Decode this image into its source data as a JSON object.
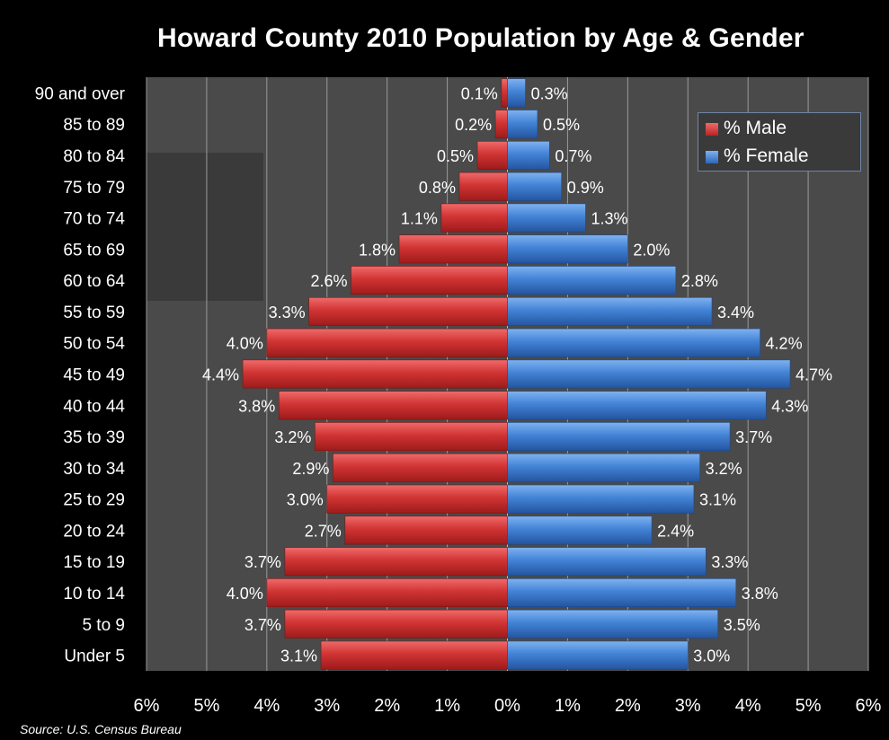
{
  "chart_data": {
    "type": "bar",
    "orientation": "horizontal",
    "title": "Howard County 2010 Population by Age & Gender",
    "source": "Source: U.S. Census Bureau",
    "categories": [
      "90 and over",
      "85 to 89",
      "80 to 84",
      "75 to 79",
      "70 to 74",
      "65 to 69",
      "60 to 64",
      "55 to 59",
      "50 to 54",
      "45 to 49",
      "40 to 44",
      "35 to 39",
      "30 to 34",
      "25 to 29",
      "20 to 24",
      "15 to 19",
      "10 to 14",
      "5 to 9",
      "Under 5"
    ],
    "series": [
      {
        "name": "% Male",
        "color": "#c62a2a",
        "side": "left",
        "values": [
          0.1,
          0.2,
          0.5,
          0.8,
          1.1,
          1.8,
          2.6,
          3.3,
          4.0,
          4.4,
          3.8,
          3.2,
          2.9,
          3.0,
          2.7,
          3.7,
          4.0,
          3.7,
          3.1
        ],
        "labels": [
          "0.1%",
          "0.2%",
          "0.5%",
          "0.8%",
          "1.1%",
          "1.8%",
          "2.6%",
          "3.3%",
          "4.0%",
          "4.4%",
          "3.8%",
          "3.2%",
          "2.9%",
          "3.0%",
          "2.7%",
          "3.7%",
          "4.0%",
          "3.7%",
          "3.1%"
        ]
      },
      {
        "name": "% Female",
        "color": "#3b78c8",
        "side": "right",
        "values": [
          0.3,
          0.5,
          0.7,
          0.9,
          1.3,
          2.0,
          2.8,
          3.4,
          4.2,
          4.7,
          4.3,
          3.7,
          3.2,
          3.1,
          2.4,
          3.3,
          3.8,
          3.5,
          3.0
        ],
        "labels": [
          "0.3%",
          "0.5%",
          "0.7%",
          "0.9%",
          "1.3%",
          "2.0%",
          "2.8%",
          "3.4%",
          "4.2%",
          "4.7%",
          "4.3%",
          "3.7%",
          "3.2%",
          "3.1%",
          "2.4%",
          "3.3%",
          "3.8%",
          "3.5%",
          "3.0%"
        ]
      }
    ],
    "x_ticks": [
      "6%",
      "5%",
      "4%",
      "3%",
      "2%",
      "1%",
      "0%",
      "1%",
      "2%",
      "3%",
      "4%",
      "5%",
      "6%"
    ],
    "xlim": [
      -6,
      6
    ],
    "grid": true,
    "legend_position": "top-right",
    "colors": {
      "background": "#000000",
      "plot_area": "#4a4a4a",
      "gridline": "#9a9a9a",
      "text": "#ffffff"
    }
  }
}
